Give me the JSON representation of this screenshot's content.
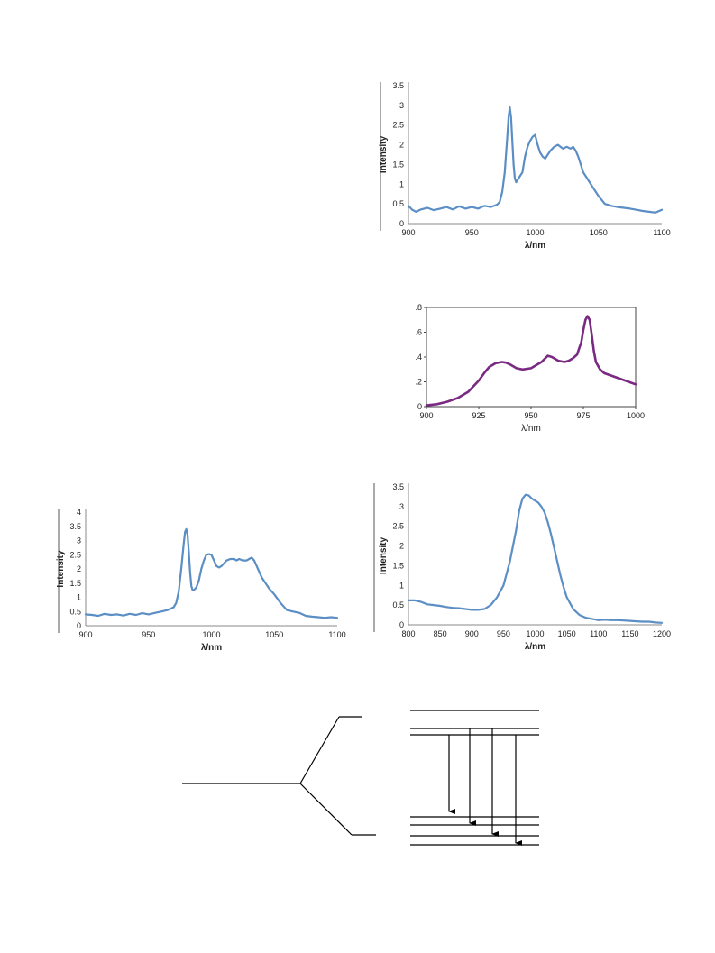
{
  "chart_data": [
    {
      "id": "chart1",
      "type": "line",
      "xlabel": "λ/nm",
      "ylabel": "Intensity",
      "xlim": [
        900,
        1100
      ],
      "ylim": [
        0,
        3.5
      ],
      "xticks": [
        900,
        950,
        1000,
        1050,
        1100
      ],
      "yticks": [
        0,
        0.5,
        1,
        1.5,
        2,
        2.5,
        3,
        3.5
      ],
      "ytick_labels": [
        "0",
        "0.5",
        "1",
        "1.5",
        "2",
        "2.5",
        "3",
        "3.5"
      ],
      "grid": false,
      "color": "#5b8ec4",
      "series": [
        {
          "x": [
            900,
            903,
            906,
            910,
            915,
            920,
            925,
            930,
            935,
            940,
            945,
            950,
            955,
            960,
            965,
            970,
            972,
            974,
            976,
            978,
            979,
            980,
            981,
            982,
            983,
            984,
            985,
            986,
            988,
            990,
            992,
            994,
            996,
            998,
            1000,
            1002,
            1004,
            1006,
            1008,
            1010,
            1012,
            1015,
            1018,
            1020,
            1022,
            1025,
            1028,
            1030,
            1032,
            1034,
            1036,
            1038,
            1040,
            1043,
            1046,
            1050,
            1055,
            1060,
            1065,
            1070,
            1075,
            1080,
            1085,
            1090,
            1095,
            1100
          ],
          "y": [
            0.45,
            0.35,
            0.3,
            0.36,
            0.4,
            0.34,
            0.38,
            0.42,
            0.36,
            0.44,
            0.38,
            0.42,
            0.38,
            0.45,
            0.42,
            0.48,
            0.55,
            0.8,
            1.3,
            2.2,
            2.7,
            2.95,
            2.7,
            2.1,
            1.5,
            1.15,
            1.05,
            1.1,
            1.2,
            1.3,
            1.7,
            1.95,
            2.1,
            2.2,
            2.25,
            2.0,
            1.8,
            1.7,
            1.65,
            1.75,
            1.85,
            1.95,
            2.0,
            1.95,
            1.9,
            1.95,
            1.9,
            1.95,
            1.85,
            1.7,
            1.5,
            1.3,
            1.2,
            1.05,
            0.9,
            0.7,
            0.5,
            0.45,
            0.42,
            0.4,
            0.38,
            0.35,
            0.32,
            0.3,
            0.28,
            0.35
          ]
        }
      ]
    },
    {
      "id": "chart2",
      "type": "line",
      "xlabel": "λ/nm",
      "ylabel": "",
      "xlim": [
        900,
        1000
      ],
      "ylim": [
        0,
        0.8
      ],
      "xticks": [
        900,
        925,
        950,
        975,
        1000
      ],
      "yticks": [
        0,
        0.2,
        0.4,
        0.6,
        0.8
      ],
      "ytick_labels": [
        "0",
        ".2",
        ".4",
        ".6",
        ".8"
      ],
      "grid": false,
      "color": "#7a2a82",
      "series": [
        {
          "x": [
            900,
            905,
            910,
            915,
            920,
            925,
            928,
            930,
            933,
            936,
            938,
            940,
            943,
            946,
            950,
            955,
            958,
            960,
            963,
            966,
            968,
            970,
            972,
            974,
            975,
            976,
            977,
            978,
            979,
            980,
            981,
            983,
            985,
            990,
            995,
            1000
          ],
          "y": [
            0.01,
            0.02,
            0.04,
            0.07,
            0.12,
            0.21,
            0.28,
            0.32,
            0.35,
            0.36,
            0.355,
            0.34,
            0.31,
            0.3,
            0.31,
            0.36,
            0.41,
            0.4,
            0.37,
            0.36,
            0.37,
            0.39,
            0.42,
            0.52,
            0.62,
            0.7,
            0.73,
            0.7,
            0.58,
            0.45,
            0.36,
            0.3,
            0.27,
            0.24,
            0.21,
            0.18
          ]
        }
      ]
    },
    {
      "id": "chart3",
      "type": "line",
      "xlabel": "λ/nm",
      "ylabel": "Intensity",
      "xlim": [
        900,
        1100
      ],
      "ylim": [
        0,
        4
      ],
      "xticks": [
        900,
        950,
        1000,
        1050,
        1100
      ],
      "yticks": [
        0,
        0.5,
        1,
        1.5,
        2,
        2.5,
        3,
        3.5,
        4
      ],
      "ytick_labels": [
        "0",
        "0.5",
        "1",
        "1.5",
        "2",
        "2.5",
        "3",
        "3.5",
        "4"
      ],
      "grid": false,
      "color": "#5b8ec4",
      "series": [
        {
          "x": [
            900,
            905,
            910,
            915,
            920,
            925,
            930,
            935,
            940,
            945,
            950,
            955,
            960,
            965,
            970,
            972,
            974,
            976,
            978,
            979,
            980,
            981,
            982,
            983,
            984,
            985,
            986,
            988,
            990,
            992,
            994,
            996,
            998,
            1000,
            1002,
            1004,
            1006,
            1008,
            1010,
            1012,
            1015,
            1018,
            1020,
            1022,
            1025,
            1028,
            1030,
            1032,
            1034,
            1036,
            1038,
            1040,
            1043,
            1046,
            1050,
            1055,
            1060,
            1065,
            1070,
            1075,
            1080,
            1085,
            1090,
            1095,
            1100
          ],
          "y": [
            0.4,
            0.38,
            0.35,
            0.42,
            0.38,
            0.4,
            0.36,
            0.42,
            0.38,
            0.44,
            0.4,
            0.45,
            0.5,
            0.55,
            0.65,
            0.8,
            1.2,
            2.0,
            2.9,
            3.3,
            3.4,
            3.2,
            2.6,
            1.9,
            1.4,
            1.25,
            1.25,
            1.35,
            1.6,
            2.0,
            2.3,
            2.5,
            2.52,
            2.5,
            2.3,
            2.1,
            2.05,
            2.1,
            2.2,
            2.3,
            2.35,
            2.35,
            2.3,
            2.35,
            2.3,
            2.3,
            2.35,
            2.4,
            2.3,
            2.1,
            1.9,
            1.7,
            1.5,
            1.3,
            1.1,
            0.8,
            0.55,
            0.5,
            0.45,
            0.35,
            0.32,
            0.3,
            0.28,
            0.3,
            0.28
          ]
        }
      ]
    },
    {
      "id": "chart4",
      "type": "line",
      "xlabel": "λ/nm",
      "ylabel": "Intensity",
      "xlim": [
        800,
        1200
      ],
      "ylim": [
        0,
        3.5
      ],
      "xticks": [
        800,
        850,
        900,
        950,
        1000,
        1050,
        1100,
        1150,
        1200
      ],
      "yticks": [
        0,
        0.5,
        1,
        1.5,
        2,
        2.5,
        3,
        3.5
      ],
      "ytick_labels": [
        "0",
        "0.5",
        "1",
        "1.5",
        "2",
        "2.5",
        "3",
        "3.5"
      ],
      "grid": false,
      "color": "#5b8ec4",
      "series": [
        {
          "x": [
            800,
            810,
            820,
            830,
            840,
            850,
            860,
            870,
            880,
            890,
            900,
            910,
            920,
            930,
            940,
            950,
            960,
            970,
            975,
            980,
            985,
            990,
            995,
            1000,
            1005,
            1010,
            1015,
            1020,
            1025,
            1030,
            1035,
            1040,
            1045,
            1050,
            1060,
            1070,
            1080,
            1090,
            1100,
            1110,
            1120,
            1130,
            1140,
            1150,
            1160,
            1170,
            1180,
            1190,
            1200
          ],
          "y": [
            0.62,
            0.62,
            0.58,
            0.52,
            0.5,
            0.48,
            0.45,
            0.43,
            0.42,
            0.4,
            0.38,
            0.38,
            0.4,
            0.5,
            0.7,
            1.0,
            1.6,
            2.4,
            2.9,
            3.2,
            3.3,
            3.28,
            3.2,
            3.15,
            3.1,
            3.0,
            2.85,
            2.6,
            2.3,
            1.95,
            1.6,
            1.25,
            0.95,
            0.7,
            0.4,
            0.25,
            0.18,
            0.15,
            0.12,
            0.13,
            0.12,
            0.12,
            0.11,
            0.1,
            0.09,
            0.08,
            0.08,
            0.06,
            0.05
          ]
        }
      ]
    }
  ]
}
